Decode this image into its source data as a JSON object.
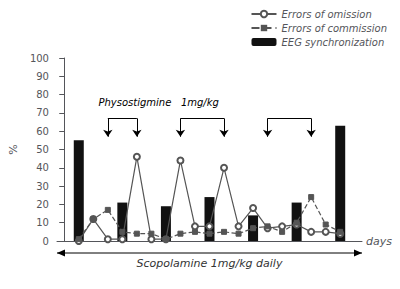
{
  "chart_data": {
    "type": "bar",
    "x_label": "Scopolamine 1mg/kg daily",
    "x_label_right": "days",
    "y_label": "%",
    "xlim": [
      -0.5,
      20.5
    ],
    "xticks": [],
    "ylim": [
      0,
      100
    ],
    "yticks": [
      0,
      10,
      20,
      30,
      40,
      50,
      60,
      70,
      80,
      90,
      100
    ],
    "grid": false,
    "legend": "upper right",
    "tick_labels": "y",
    "series": [
      {
        "name": "Errors of omission",
        "type": "line",
        "color": "#555555",
        "marker": "circle",
        "line_style": "solid",
        "x": [
          1,
          2,
          3,
          4,
          5,
          6,
          7,
          8,
          9,
          10,
          11,
          12,
          13,
          14,
          15,
          16,
          17,
          18,
          19
        ],
        "values": [
          0,
          12,
          1,
          1,
          46,
          1,
          1,
          44,
          8,
          8,
          40,
          8,
          18,
          7,
          8,
          9,
          5,
          5,
          4
        ]
      },
      {
        "name": "Errors of commission",
        "type": "line",
        "color": "#555555",
        "marker": "square",
        "line_style": "dashed",
        "x": [
          1,
          2,
          3,
          4,
          5,
          6,
          7,
          8,
          9,
          10,
          11,
          12,
          13,
          14,
          15,
          16,
          17,
          18,
          19
        ],
        "values": [
          1,
          12,
          17,
          5,
          4,
          4,
          1,
          4,
          5,
          4,
          5,
          4,
          7,
          8,
          5,
          10,
          24,
          9,
          5
        ]
      },
      {
        "name": "EEG synchronization",
        "type": "bar",
        "color": "#111111",
        "x": [
          1,
          4,
          7,
          10,
          13,
          16,
          19
        ],
        "values": [
          55,
          21,
          19,
          24,
          14,
          21,
          63
        ]
      }
    ],
    "annotations": [
      {
        "text": "Physostigmine   1mg/kg",
        "x": 6.5,
        "y": 73,
        "arrows": {
          "x": [
            3,
            5,
            8,
            11,
            14,
            17
          ],
          "from": 67,
          "to": 57
        },
        "brackets": [
          [
            3,
            5
          ],
          [
            8,
            11
          ],
          [
            14,
            17
          ]
        ]
      }
    ]
  }
}
